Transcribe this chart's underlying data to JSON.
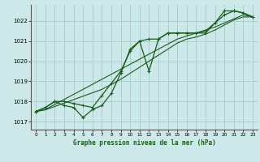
{
  "title": "Graphe pression niveau de la mer (hPa)",
  "bg_color": "#cce8e8",
  "grid_color": "#aacece",
  "line_color": "#1a5c1a",
  "xlim": [
    -0.5,
    23.5
  ],
  "ylim": [
    1016.6,
    1022.8
  ],
  "yticks": [
    1017,
    1018,
    1019,
    1020,
    1021,
    1022
  ],
  "xticks": [
    0,
    1,
    2,
    3,
    4,
    5,
    6,
    7,
    8,
    9,
    10,
    11,
    12,
    13,
    14,
    15,
    16,
    17,
    18,
    19,
    20,
    21,
    22,
    23
  ],
  "series": {
    "jagged": [
      1017.5,
      1017.7,
      1018.0,
      1017.8,
      1017.7,
      1017.2,
      1017.6,
      1017.8,
      1018.4,
      1019.4,
      1020.6,
      1021.0,
      1019.5,
      1021.1,
      1021.4,
      1021.4,
      1021.4,
      1021.4,
      1021.5,
      1021.9,
      1022.5,
      1022.5,
      1022.4,
      1022.2
    ],
    "upper_marked": [
      1017.5,
      1017.7,
      1018.0,
      1018.0,
      1017.9,
      1017.8,
      1017.7,
      1018.3,
      1018.9,
      1019.5,
      1020.5,
      1021.0,
      1021.1,
      1021.1,
      1021.4,
      1021.4,
      1021.4,
      1021.4,
      1021.4,
      1021.9,
      1022.3,
      1022.5,
      1022.4,
      1022.2
    ],
    "trend1": [
      1017.5,
      1017.6,
      1017.85,
      1018.1,
      1018.35,
      1018.6,
      1018.85,
      1019.1,
      1019.35,
      1019.6,
      1019.85,
      1020.1,
      1020.35,
      1020.6,
      1020.85,
      1021.1,
      1021.25,
      1021.4,
      1021.55,
      1021.7,
      1021.9,
      1022.1,
      1022.3,
      1022.2
    ],
    "trend2": [
      1017.5,
      1017.58,
      1017.75,
      1017.92,
      1018.09,
      1018.26,
      1018.43,
      1018.6,
      1018.85,
      1019.1,
      1019.4,
      1019.7,
      1020.0,
      1020.3,
      1020.6,
      1020.9,
      1021.1,
      1021.2,
      1021.35,
      1021.55,
      1021.8,
      1022.05,
      1022.2,
      1022.2
    ]
  }
}
